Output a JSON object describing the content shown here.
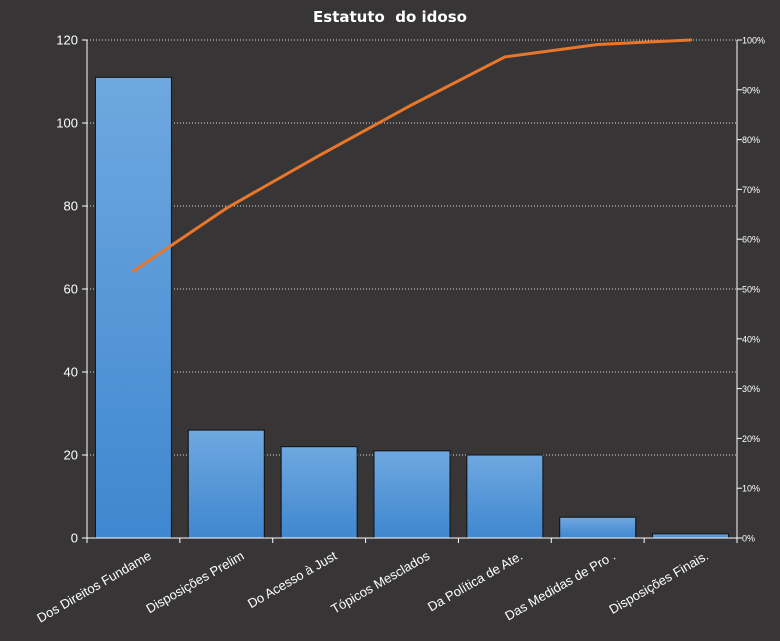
{
  "chart_data": {
    "type": "bar",
    "title": "Estatuto  do idoso",
    "categories": [
      "Dos Direitos Fundame",
      "Disposições Prelim",
      "Do Acesso à Just",
      "Tópicos Mesclados",
      "Da Política de Ate.",
      "Das Medidas de Pro .",
      "Disposições Finais."
    ],
    "series": [
      {
        "type": "bar",
        "values": [
          111,
          26,
          22,
          21,
          20,
          5,
          1
        ]
      },
      {
        "type": "line",
        "axis": "right",
        "values": [
          53.6,
          66.2,
          76.8,
          87.0,
          96.6,
          99.1,
          100
        ]
      }
    ],
    "left_axis": {
      "ylim": [
        0,
        120
      ],
      "ticks": [
        0,
        20,
        40,
        60,
        80,
        100,
        120
      ]
    },
    "right_axis": {
      "ylim": [
        0,
        100
      ],
      "ticks": [
        "0%",
        "10%",
        "20%",
        "30%",
        "40%",
        "50%",
        "60%",
        "70%",
        "80%",
        "90%",
        "100%"
      ]
    },
    "grid": true,
    "legend": "none",
    "colors": {
      "background": "#373535",
      "bar_top": "#6fa8e0",
      "bar_bottom": "#3f87cf",
      "bar_stroke": "#111111",
      "line": "#e8772c",
      "grid": "#dddddd",
      "axis": "#ffffff",
      "text": "#ffffff"
    }
  }
}
